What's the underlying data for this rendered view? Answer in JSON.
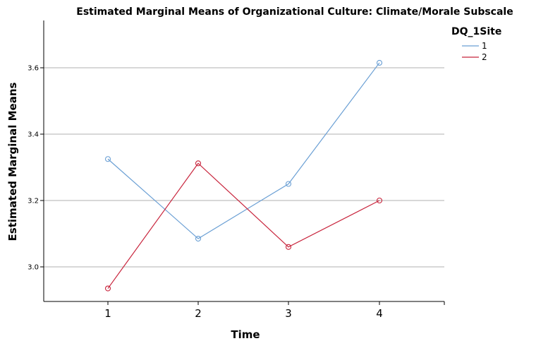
{
  "chart_data": {
    "type": "line",
    "title": "Estimated Marginal Means of Organizational Culture: Climate/Morale Subscale",
    "xlabel": "Time",
    "ylabel": "Estimated Marginal Means",
    "categories": [
      "1",
      "2",
      "3",
      "4"
    ],
    "yticks": [
      "3.0",
      "3.2",
      "3.4",
      "3.6"
    ],
    "ylim": [
      2.9,
      3.74
    ],
    "grid": true,
    "legend": {
      "title": "DQ_1Site",
      "position": "top-right"
    },
    "series": [
      {
        "name": "1",
        "color": "#6a9fd4",
        "values": [
          3.325,
          3.085,
          3.25,
          3.615
        ]
      },
      {
        "name": "2",
        "color": "#c8243c",
        "values": [
          2.935,
          3.312,
          3.06,
          3.2
        ]
      }
    ]
  }
}
